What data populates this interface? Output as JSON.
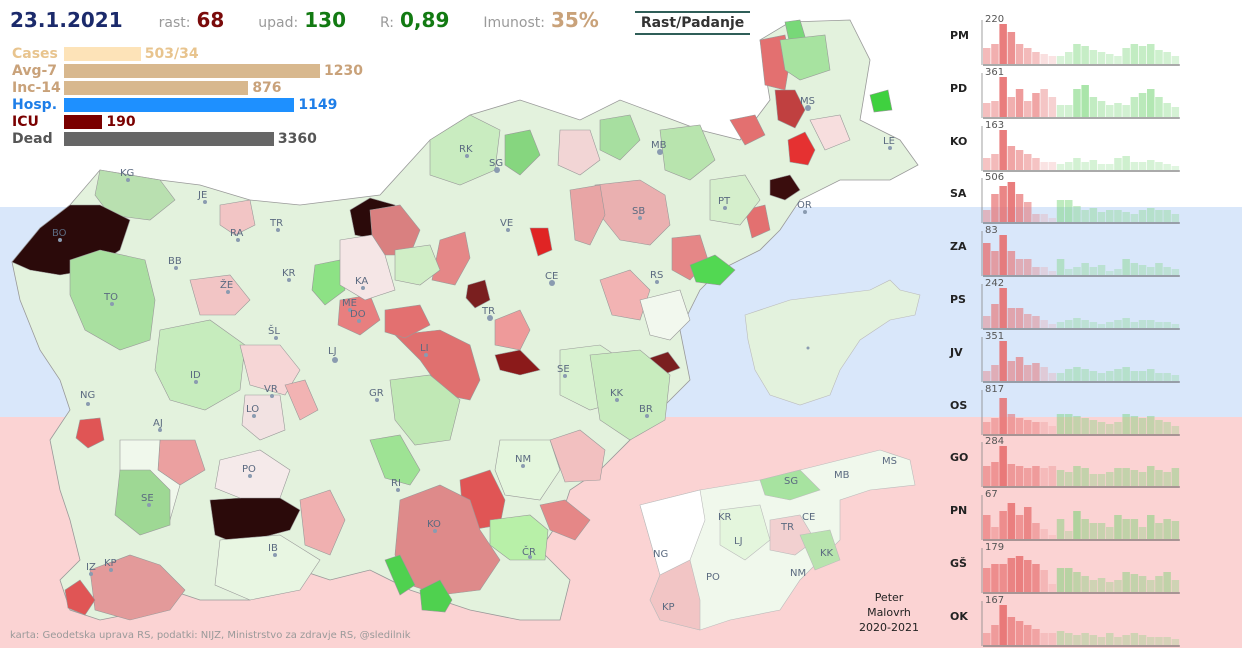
{
  "header": {
    "date": "23.1.2021",
    "rast_label": "rast:",
    "rast_value": "68",
    "upad_label": "upad:",
    "upad_value": "130",
    "r_label": "R:",
    "r_value": "0,89",
    "imunost_label": "Imunost:",
    "imunost_value": "35%",
    "toggle_label": "Rast/Padanje"
  },
  "stats": [
    {
      "name": "Cases",
      "value": "503/34",
      "fill": 0.3,
      "color": "#fde3b8",
      "text_color": "#e8c48e"
    },
    {
      "name": "Avg-7",
      "value": "1230",
      "fill": 1.0,
      "color": "#d8b88e",
      "text_color": "#c9a27a"
    },
    {
      "name": "Inc-14",
      "value": "876",
      "fill": 0.72,
      "color": "#d8b88e",
      "text_color": "#c9a27a"
    },
    {
      "name": "Hosp.",
      "value": "1149",
      "fill": 0.9,
      "color": "#1e90ff",
      "text_color": "#1e7ee8"
    },
    {
      "name": "ICU",
      "value": "190",
      "fill": 0.15,
      "color": "#7a0000",
      "text_color": "#7a0000"
    },
    {
      "name": "Dead",
      "value": "3360",
      "fill": 0.82,
      "color": "#666666",
      "text_color": "#555555"
    }
  ],
  "colors": {
    "band_top": "#d9e7fa",
    "band_bottom": "#fbd3d3",
    "growth_dark": "#2b0a0a",
    "growth_red": "#e0534f",
    "growth_pink": "#f2b3b3",
    "decline_green": "#6dd46d",
    "decline_light": "#d6f0d0"
  },
  "map_labels": [
    "PM",
    "KG",
    "JE",
    "RA",
    "BO",
    "BB",
    "TR",
    "KR",
    "ŽE",
    "ŠL",
    "TO",
    "KA",
    "ME",
    "DO",
    "LJ",
    "LI",
    "RK",
    "SG",
    "VE",
    "CE",
    "MB",
    "SB",
    "PT",
    "OR",
    "MS",
    "LE",
    "RS",
    "TR",
    "SE",
    "KK",
    "BR",
    "NG",
    "AJ",
    "ID",
    "VR",
    "LO",
    "GR",
    "PO",
    "NM",
    "RI",
    "KO",
    "ČR",
    "SE",
    "IB",
    "IZ",
    "KP"
  ],
  "region_labels": [
    "MS",
    "SG",
    "MB",
    "KR",
    "CE",
    "TR",
    "LJ",
    "KK",
    "NG",
    "NM",
    "PO",
    "KP"
  ],
  "sparklines": [
    {
      "region": "PM",
      "peak": "220",
      "values": [
        0.4,
        0.5,
        1.0,
        0.8,
        0.5,
        0.4,
        0.3,
        0.25,
        0.2,
        0.2,
        0.3,
        0.5,
        0.45,
        0.35,
        0.3,
        0.25,
        0.2,
        0.4,
        0.5,
        0.45,
        0.5,
        0.35,
        0.3,
        0.2
      ]
    },
    {
      "region": "PD",
      "peak": "361",
      "values": [
        0.35,
        0.4,
        1.0,
        0.5,
        0.7,
        0.4,
        0.6,
        0.7,
        0.5,
        0.3,
        0.3,
        0.7,
        0.8,
        0.5,
        0.4,
        0.3,
        0.35,
        0.3,
        0.5,
        0.6,
        0.7,
        0.5,
        0.35,
        0.25
      ]
    },
    {
      "region": "KO",
      "peak": "163",
      "values": [
        0.3,
        0.4,
        1.0,
        0.6,
        0.5,
        0.4,
        0.3,
        0.2,
        0.2,
        0.15,
        0.2,
        0.3,
        0.2,
        0.25,
        0.15,
        0.15,
        0.3,
        0.35,
        0.2,
        0.2,
        0.25,
        0.2,
        0.15,
        0.1
      ]
    },
    {
      "region": "SA",
      "peak": "506",
      "values": [
        0.3,
        0.7,
        0.9,
        1.0,
        0.7,
        0.5,
        0.2,
        0.2,
        0.1,
        0.55,
        0.55,
        0.4,
        0.3,
        0.35,
        0.25,
        0.3,
        0.3,
        0.25,
        0.2,
        0.3,
        0.35,
        0.3,
        0.3,
        0.2
      ]
    },
    {
      "region": "ZA",
      "peak": "83",
      "values": [
        0.8,
        0.6,
        1.0,
        0.6,
        0.4,
        0.4,
        0.2,
        0.2,
        0.1,
        0.4,
        0.15,
        0.2,
        0.3,
        0.2,
        0.25,
        0.1,
        0.15,
        0.4,
        0.3,
        0.25,
        0.2,
        0.3,
        0.2,
        0.15
      ]
    },
    {
      "region": "PS",
      "peak": "242",
      "values": [
        0.3,
        0.6,
        1.0,
        0.5,
        0.5,
        0.35,
        0.3,
        0.2,
        0.1,
        0.15,
        0.2,
        0.25,
        0.2,
        0.15,
        0.1,
        0.15,
        0.2,
        0.25,
        0.15,
        0.2,
        0.2,
        0.15,
        0.15,
        0.1
      ]
    },
    {
      "region": "JV",
      "peak": "351",
      "values": [
        0.25,
        0.4,
        1.0,
        0.5,
        0.6,
        0.4,
        0.45,
        0.35,
        0.2,
        0.2,
        0.3,
        0.35,
        0.3,
        0.25,
        0.2,
        0.25,
        0.3,
        0.35,
        0.25,
        0.25,
        0.3,
        0.2,
        0.2,
        0.15
      ]
    },
    {
      "region": "OS",
      "peak": "817",
      "values": [
        0.3,
        0.4,
        0.9,
        0.5,
        0.4,
        0.35,
        0.3,
        0.3,
        0.2,
        0.5,
        0.5,
        0.45,
        0.4,
        0.35,
        0.3,
        0.25,
        0.3,
        0.5,
        0.45,
        0.4,
        0.45,
        0.35,
        0.3,
        0.2
      ]
    },
    {
      "region": "GO",
      "peak": "284",
      "values": [
        0.5,
        0.6,
        1.0,
        0.55,
        0.5,
        0.45,
        0.5,
        0.45,
        0.5,
        0.4,
        0.35,
        0.5,
        0.45,
        0.3,
        0.3,
        0.35,
        0.45,
        0.45,
        0.4,
        0.35,
        0.5,
        0.4,
        0.35,
        0.45
      ]
    },
    {
      "region": "PN",
      "peak": "67",
      "values": [
        0.6,
        0.3,
        0.7,
        0.9,
        0.6,
        0.8,
        0.4,
        0.25,
        0.1,
        0.5,
        0.2,
        0.7,
        0.5,
        0.4,
        0.4,
        0.3,
        0.6,
        0.5,
        0.5,
        0.3,
        0.6,
        0.4,
        0.5,
        0.45
      ]
    },
    {
      "region": "GŠ",
      "peak": "179",
      "values": [
        0.6,
        0.7,
        0.7,
        0.85,
        0.9,
        0.8,
        0.7,
        0.55,
        0.2,
        0.6,
        0.6,
        0.5,
        0.4,
        0.3,
        0.35,
        0.25,
        0.3,
        0.5,
        0.45,
        0.4,
        0.3,
        0.4,
        0.5,
        0.3
      ]
    },
    {
      "region": "OK",
      "peak": "167",
      "values": [
        0.3,
        0.5,
        1.0,
        0.7,
        0.6,
        0.5,
        0.4,
        0.3,
        0.3,
        0.35,
        0.3,
        0.25,
        0.3,
        0.25,
        0.2,
        0.3,
        0.2,
        0.25,
        0.3,
        0.25,
        0.2,
        0.2,
        0.2,
        0.15
      ]
    }
  ],
  "credit": "karta: Geodetska uprava RS, podatki: NIJZ, Ministrstvo za zdravje RS, @sledilnik",
  "signature": {
    "line1": "Peter",
    "line2": "Malovrh",
    "line3": "2020-2021"
  }
}
